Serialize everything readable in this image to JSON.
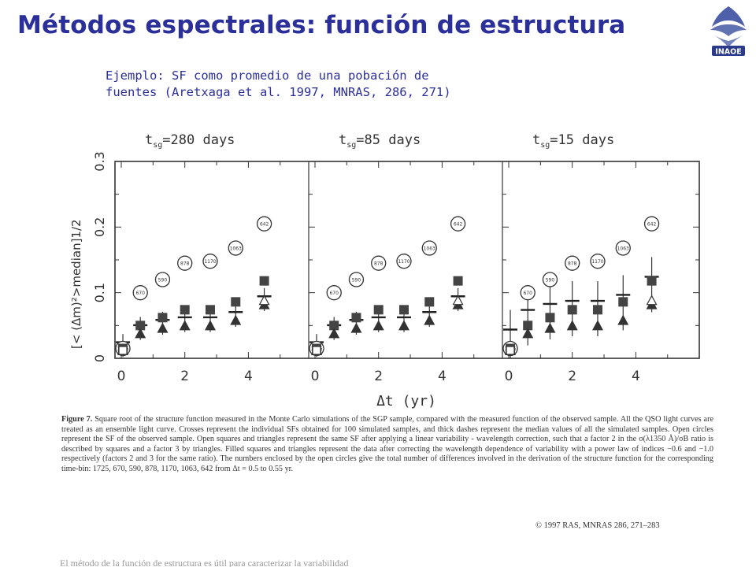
{
  "slide": {
    "title": "Métodos espectrales: función de estructura",
    "subtitle_line1": "Ejemplo: SF como promedio de una pobación de",
    "subtitle_line2": "fuentes (Aretxaga et al. 1997, MNRAS, 286, 271)",
    "logo_text": "INAOE",
    "title_color": "#2b2f9a"
  },
  "figure": {
    "panels": [
      {
        "label_main": "t",
        "label_sub": "sg",
        "label_value": "=280 days"
      },
      {
        "label_main": "t",
        "label_sub": "sg",
        "label_value": "=85 days"
      },
      {
        "label_main": "t",
        "label_sub": "sg",
        "label_value": "=15 days"
      }
    ],
    "y_ticks": [
      "0",
      "0.1",
      "0.2",
      "0.3"
    ],
    "x_ticks": [
      "0",
      "2",
      "4"
    ],
    "xlabel": "Δt (yr)",
    "ylabel": "[< (Δm)²>median]1/2",
    "circle_labels": [
      "1725",
      "670",
      "590",
      "878",
      "1170",
      "1063",
      "642"
    ],
    "data": {
      "x": [
        0.05,
        0.6,
        1.3,
        2.0,
        2.8,
        3.6,
        4.5
      ],
      "circles": [
        0.015,
        0.1,
        0.12,
        0.145,
        0.148,
        0.168,
        0.205
      ],
      "filled_squares": [
        0.015,
        0.05,
        0.062,
        0.074,
        0.074,
        0.086,
        0.118
      ],
      "filled_triangles": [
        0.012,
        0.038,
        0.046,
        0.05,
        0.05,
        0.058,
        0.082
      ],
      "open_squares": [
        0.012,
        0.048,
        0.058,
        0.068,
        0.07,
        0.08,
        0.104
      ],
      "open_triangles": [
        0.012,
        0.04,
        0.05,
        0.054,
        0.054,
        0.064,
        0.088
      ]
    }
  },
  "caption": {
    "lead": "Figure 7.",
    "text": "Square root of the structure function measured in the Monte Carlo simulations of the SGP sample, compared with the measured function of the observed sample. All the QSO light curves are treated as an ensemble light curve. Crosses represent the individual SFs obtained for 100 simulated samples, and thick dashes represent the median values of all the simulated samples. Open circles represent the SF of the observed sample. Open squares and triangles represent the same SF after applying a linear variability - wavelength correction, such that a factor 2 in the σ(λ1350 Å)/σB ratio is described by squares and a factor 3 by triangles. Filled squares and triangles represent the data after correcting the wavelength dependence of variability with a power law of indices −0.6 and −1.0 respectively (factors 2 and 3 for the same ratio). The numbers enclosed by the open circles give the total number of differences involved in the derivation of the structure function for the corresponding time-bin: 1725, 670, 590, 878, 1170, 1063, 642 from Δt = 0.5 to 0.55 yr.",
    "copyright": "© 1997 RAS, MNRAS 286, 271–283"
  },
  "footer": {
    "partial_text": "El método de la función de estructura es útil para caracterizar la variabilidad"
  }
}
